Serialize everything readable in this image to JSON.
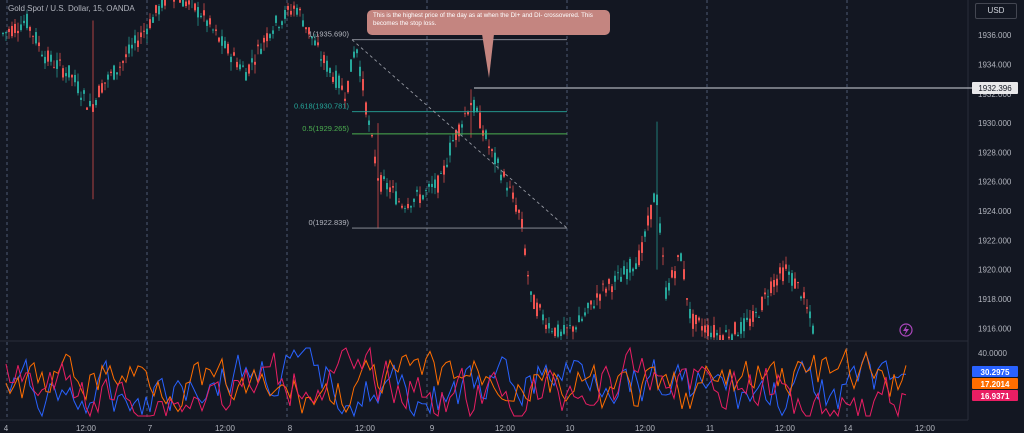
{
  "header": {
    "title": "Gold Spot / U.S. Dollar, 15, OANDA"
  },
  "currency_label": "USD",
  "annotation": {
    "text": "This is the highest price of the day as at when the DI+ and DI- crossovered. This becomes the stop loss."
  },
  "colors": {
    "background": "#131722",
    "up": "#26a69a",
    "down": "#ef5350",
    "di_plus": "#2962ff",
    "adx": "#ff6d00",
    "di_minus": "#e91e63",
    "fib_green": "#4caf50",
    "fib_teal": "#26a69a",
    "note_bg": "#c48580",
    "lightning": "#ab47bc"
  },
  "chart_data": [
    {
      "type": "candlestick",
      "title": "Gold Spot / U.S. Dollar, 15, OANDA",
      "ylim": [
        1915.2,
        1938.4
      ],
      "y_ticks": [
        "1936.000",
        "1934.000",
        "1932.000",
        "1930.000",
        "1928.000",
        "1926.000",
        "1924.000",
        "1922.000",
        "1920.000",
        "1918.000",
        "1916.000"
      ],
      "x_ticks": [
        "4",
        "12:00",
        "7",
        "12:00",
        "8",
        "12:00",
        "9",
        "12:00",
        "10",
        "12:00",
        "11",
        "12:00",
        "14",
        "12:00"
      ],
      "price_marker": "1932.396",
      "fib_levels": [
        {
          "label": "1(1935.690)",
          "value": 1935.69
        },
        {
          "label": "0.618(1930.781)",
          "value": 1930.781
        },
        {
          "label": "0.5(1929.265)",
          "value": 1929.265
        },
        {
          "label": "0(1922.839)",
          "value": 1922.839
        }
      ],
      "horizontal_line": 1932.396
    },
    {
      "type": "line",
      "indicator": "DMI",
      "y_ticks": [
        "40.0000"
      ],
      "series": [
        {
          "color": "#2962ff",
          "last_value": "30.2975"
        },
        {
          "color": "#ff6d00",
          "last_value": "17.2014"
        },
        {
          "color": "#e91e63",
          "last_value": "16.9371"
        }
      ]
    }
  ]
}
